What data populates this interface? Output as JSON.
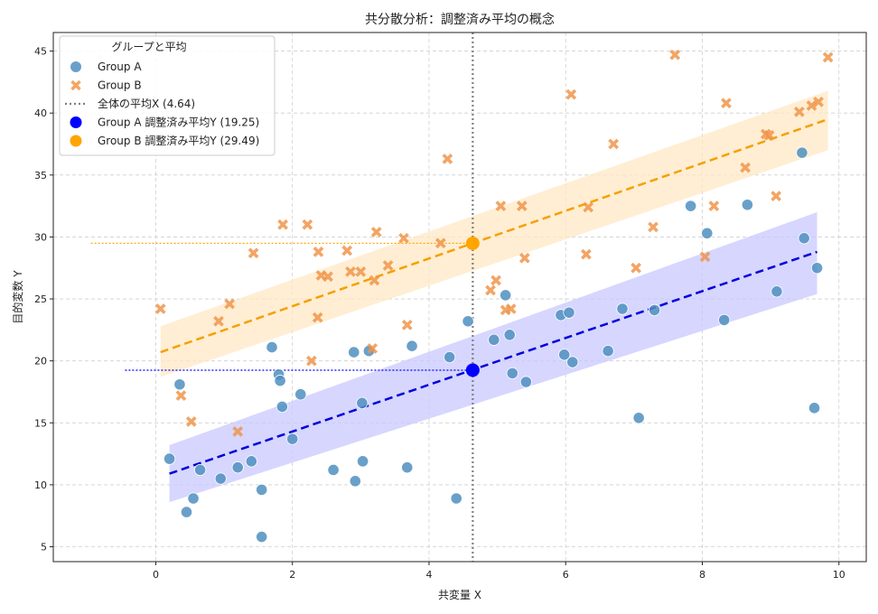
{
  "chart_data": {
    "type": "scatter",
    "title": "共分散分析：調整済み平均の概念",
    "xlabel": "共変量 X",
    "ylabel": "目的変数 Y",
    "xlim": [
      -1.5,
      10.4
    ],
    "ylim": [
      3.8,
      46.5
    ],
    "xticks": [
      0,
      2,
      4,
      6,
      8,
      10
    ],
    "yticks": [
      5,
      10,
      15,
      20,
      25,
      30,
      35,
      40,
      45
    ],
    "grid": true,
    "legend": {
      "title": "グループと平均",
      "placement": "top-left",
      "entries": [
        {
          "label": "Group A",
          "marker": "circle",
          "color": "#4f8fc0"
        },
        {
          "label": "Group B",
          "marker": "x",
          "color": "#f0954a"
        },
        {
          "label": "全体の平均X (4.64)",
          "marker": "dotted-line",
          "color": "#808080"
        },
        {
          "label": "Group A 調整済み平均Y (19.25)",
          "marker": "circle",
          "color": "#0000ff"
        },
        {
          "label": "Group B 調整済み平均Y (29.49)",
          "marker": "circle",
          "color": "#ffa500"
        }
      ]
    },
    "overall_mean_x": 4.64,
    "series": [
      {
        "name": "Group A",
        "color": "#4f8fc0",
        "marker": "circle",
        "points": [
          [
            0.2,
            12.1
          ],
          [
            0.35,
            18.1
          ],
          [
            0.45,
            7.8
          ],
          [
            0.55,
            8.9
          ],
          [
            0.65,
            11.2
          ],
          [
            0.95,
            10.5
          ],
          [
            1.2,
            11.4
          ],
          [
            1.4,
            11.9
          ],
          [
            1.55,
            9.6
          ],
          [
            1.55,
            5.8
          ],
          [
            1.7,
            21.1
          ],
          [
            1.8,
            18.9
          ],
          [
            1.82,
            18.4
          ],
          [
            1.85,
            16.3
          ],
          [
            2.0,
            13.7
          ],
          [
            2.12,
            17.3
          ],
          [
            2.6,
            11.2
          ],
          [
            2.9,
            20.7
          ],
          [
            2.92,
            10.3
          ],
          [
            3.02,
            16.6
          ],
          [
            3.03,
            11.9
          ],
          [
            3.12,
            20.8
          ],
          [
            3.68,
            11.4
          ],
          [
            3.75,
            21.2
          ],
          [
            4.3,
            20.3
          ],
          [
            4.4,
            8.9
          ],
          [
            4.57,
            23.2
          ],
          [
            4.95,
            21.7
          ],
          [
            5.12,
            25.3
          ],
          [
            5.18,
            22.1
          ],
          [
            5.22,
            19.0
          ],
          [
            5.42,
            18.3
          ],
          [
            5.93,
            23.7
          ],
          [
            5.98,
            20.5
          ],
          [
            6.05,
            23.9
          ],
          [
            6.1,
            19.9
          ],
          [
            6.62,
            20.8
          ],
          [
            6.83,
            24.2
          ],
          [
            7.07,
            15.4
          ],
          [
            7.3,
            24.1
          ],
          [
            7.83,
            32.5
          ],
          [
            8.07,
            30.3
          ],
          [
            8.32,
            23.3
          ],
          [
            8.66,
            32.6
          ],
          [
            9.09,
            25.6
          ],
          [
            9.46,
            36.8
          ],
          [
            9.49,
            29.9
          ],
          [
            9.64,
            16.2
          ],
          [
            9.68,
            27.5
          ]
        ]
      },
      {
        "name": "Group B",
        "color": "#f0954a",
        "marker": "x",
        "points": [
          [
            0.07,
            24.2
          ],
          [
            0.37,
            17.2
          ],
          [
            0.52,
            15.1
          ],
          [
            0.92,
            23.2
          ],
          [
            1.08,
            24.6
          ],
          [
            1.2,
            14.3
          ],
          [
            1.43,
            28.7
          ],
          [
            1.86,
            31.0
          ],
          [
            2.22,
            31.0
          ],
          [
            2.28,
            20.0
          ],
          [
            2.37,
            23.5
          ],
          [
            2.38,
            28.8
          ],
          [
            2.42,
            26.9
          ],
          [
            2.52,
            26.8
          ],
          [
            2.8,
            28.9
          ],
          [
            2.85,
            27.2
          ],
          [
            3.0,
            27.2
          ],
          [
            3.17,
            21.0
          ],
          [
            3.2,
            26.5
          ],
          [
            3.23,
            30.4
          ],
          [
            3.4,
            27.7
          ],
          [
            3.63,
            29.9
          ],
          [
            3.68,
            22.9
          ],
          [
            4.17,
            29.5
          ],
          [
            4.27,
            36.3
          ],
          [
            4.9,
            25.7
          ],
          [
            4.98,
            26.5
          ],
          [
            5.05,
            32.5
          ],
          [
            5.12,
            24.1
          ],
          [
            5.2,
            24.2
          ],
          [
            5.36,
            32.5
          ],
          [
            5.4,
            28.3
          ],
          [
            6.08,
            41.5
          ],
          [
            6.3,
            28.6
          ],
          [
            6.33,
            32.4
          ],
          [
            6.7,
            37.5
          ],
          [
            7.03,
            27.5
          ],
          [
            7.28,
            30.8
          ],
          [
            7.6,
            44.7
          ],
          [
            8.04,
            28.4
          ],
          [
            8.17,
            32.5
          ],
          [
            8.35,
            40.8
          ],
          [
            8.63,
            35.6
          ],
          [
            8.93,
            38.3
          ],
          [
            8.98,
            38.2
          ],
          [
            9.08,
            33.3
          ],
          [
            9.42,
            40.1
          ],
          [
            9.6,
            40.6
          ],
          [
            9.7,
            40.9
          ],
          [
            9.84,
            44.5
          ]
        ]
      }
    ],
    "regression_lines": [
      {
        "name": "Group A",
        "color": "#0000dd",
        "x": [
          0.2,
          9.68
        ],
        "y": [
          10.9,
          28.8
        ],
        "ci_low": [
          8.6,
          25.4
        ],
        "ci_high": [
          13.2,
          32.0
        ],
        "band_color": "#c8c8ff"
      },
      {
        "name": "Group B",
        "color": "#f5a000",
        "x": [
          0.07,
          9.84
        ],
        "y": [
          20.7,
          39.5
        ],
        "ci_low": [
          18.7,
          37.0
        ],
        "ci_high": [
          22.8,
          41.8
        ],
        "band_color": "#ffe8c4"
      }
    ],
    "adjusted_means": [
      {
        "name": "Group A 調整済み平均Y (19.25)",
        "x": 4.64,
        "y": 19.25,
        "color": "#0000ff",
        "guide_from_x": -0.45
      },
      {
        "name": "Group B 調整済み平均Y (29.49)",
        "x": 4.64,
        "y": 29.49,
        "color": "#ffa500",
        "guide_from_x": -0.95
      }
    ]
  }
}
